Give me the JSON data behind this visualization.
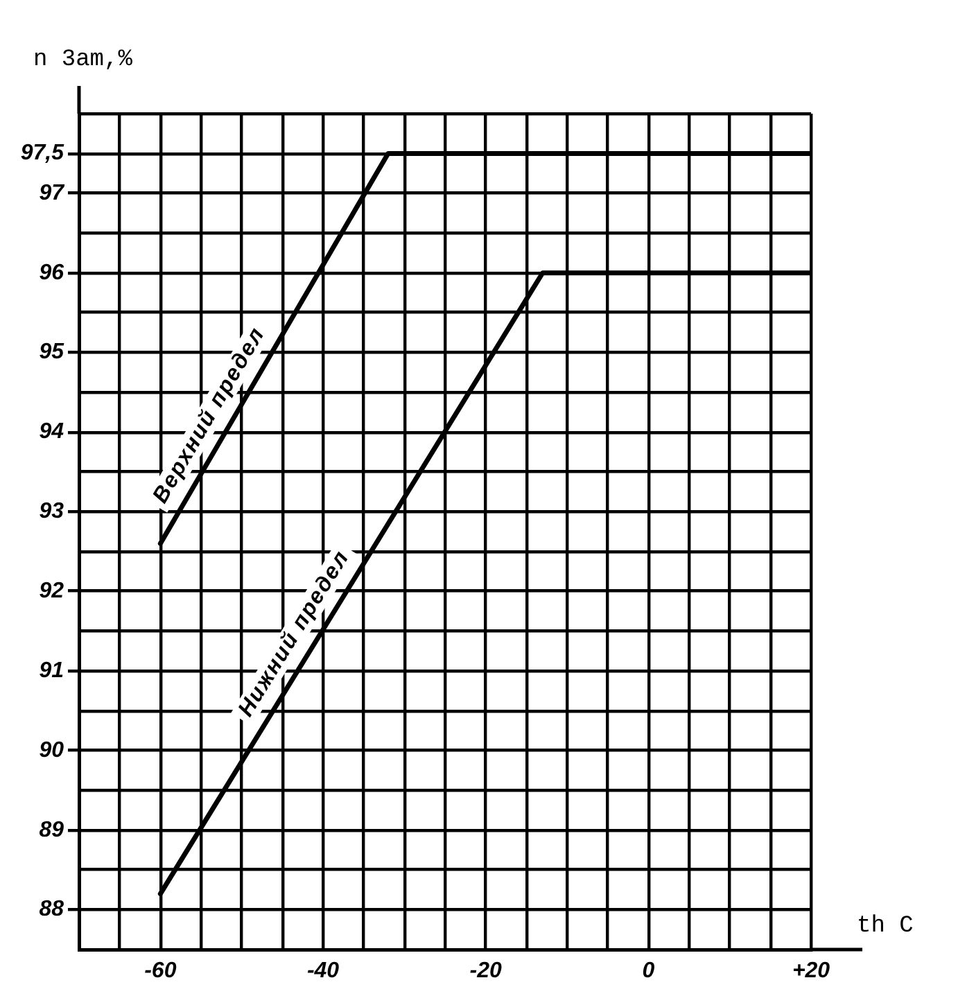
{
  "chart_data": {
    "type": "line",
    "xlabel": "th C",
    "ylabel": "n 3am,%",
    "series": [
      {
        "name": "Верхний предел",
        "color": "#000000",
        "x": [
          -60,
          -32,
          20
        ],
        "values": [
          92.6,
          97.5,
          97.5
        ]
      },
      {
        "name": "Нижний предел",
        "color": "#000000",
        "x": [
          -60,
          -13,
          20
        ],
        "values": [
          88.2,
          96,
          96
        ]
      }
    ],
    "xlim": [
      -70,
      20
    ],
    "xticks": [
      {
        "value": -65,
        "label": null
      },
      -60,
      {
        "value": -55,
        "label": null
      },
      {
        "value": -50,
        "label": null
      },
      {
        "value": -45,
        "label": null
      },
      -40,
      {
        "value": -35,
        "label": null
      },
      {
        "value": -30,
        "label": null
      },
      {
        "value": -25,
        "label": null
      },
      -20,
      {
        "value": -15,
        "label": null
      },
      {
        "value": -10,
        "label": null
      },
      {
        "value": -5,
        "label": null
      },
      0,
      {
        "value": 5,
        "label": null
      },
      {
        "value": 10,
        "label": null
      },
      {
        "value": 15,
        "label": null
      },
      {
        "value": 20,
        "label": "+20"
      }
    ],
    "ylim": [
      87.5,
      98
    ],
    "yticks": [
      88,
      {
        "value": 88.5,
        "label": null
      },
      89,
      {
        "value": 89.5,
        "label": null
      },
      90,
      {
        "value": 90.5,
        "label": null
      },
      91,
      {
        "value": 91.5,
        "label": null
      },
      92,
      {
        "value": 92.5,
        "label": null
      },
      93,
      {
        "value": 93.5,
        "label": null
      },
      94,
      {
        "value": 94.5,
        "label": null
      },
      95,
      {
        "value": 95.5,
        "label": null
      },
      96,
      {
        "value": 96.5,
        "label": null
      },
      97,
      {
        "value": 97.5,
        "label": "97,5"
      },
      {
        "value": 98,
        "label": null
      }
    ],
    "grid": true,
    "legend": false,
    "marker": "none",
    "line_style": "solid"
  }
}
